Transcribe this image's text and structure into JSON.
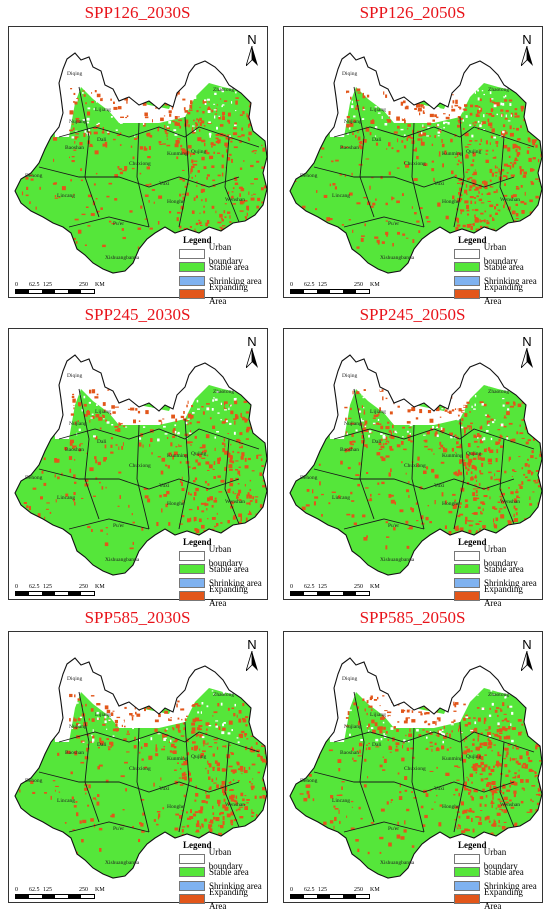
{
  "panels": [
    {
      "title": "SPP126_2030S",
      "expand": 0.55
    },
    {
      "title": "SPP126_2050S",
      "expand": 0.62
    },
    {
      "title": "SPP245_2030S",
      "expand": 0.5
    },
    {
      "title": "SPP245_2050S",
      "expand": 0.6
    },
    {
      "title": "SPP585_2030S",
      "expand": 0.58
    },
    {
      "title": "SPP585_2050S",
      "expand": 0.66
    }
  ],
  "north_label": "N",
  "legend": {
    "title": "Legend",
    "items": [
      {
        "label": "Urban boundary",
        "color": "#ffffff"
      },
      {
        "label": "Stable area",
        "color": "#55e63a"
      },
      {
        "label": "Shrinking area",
        "color": "#7fb2f0"
      },
      {
        "label": "Expanding Area",
        "color": "#e2561a"
      }
    ]
  },
  "scale_bar": {
    "ticks": [
      "0",
      "62.5",
      "125",
      "250"
    ],
    "unit": "KM"
  },
  "places": [
    "Diqing",
    "Nujiang",
    "Lijiang",
    "Dali",
    "Baoshan",
    "Dehong",
    "Lincang",
    "Chuxiong",
    "Kunming",
    "Qujing",
    "Zhaotong",
    "Yuxi",
    "Honghe",
    "Wenshan",
    "Pu'er",
    "Xishuangbanna"
  ],
  "colors": {
    "title": "#e8131a",
    "stable": "#55e63a",
    "expanding": "#e2561a",
    "white_patch": "#ffffff"
  }
}
